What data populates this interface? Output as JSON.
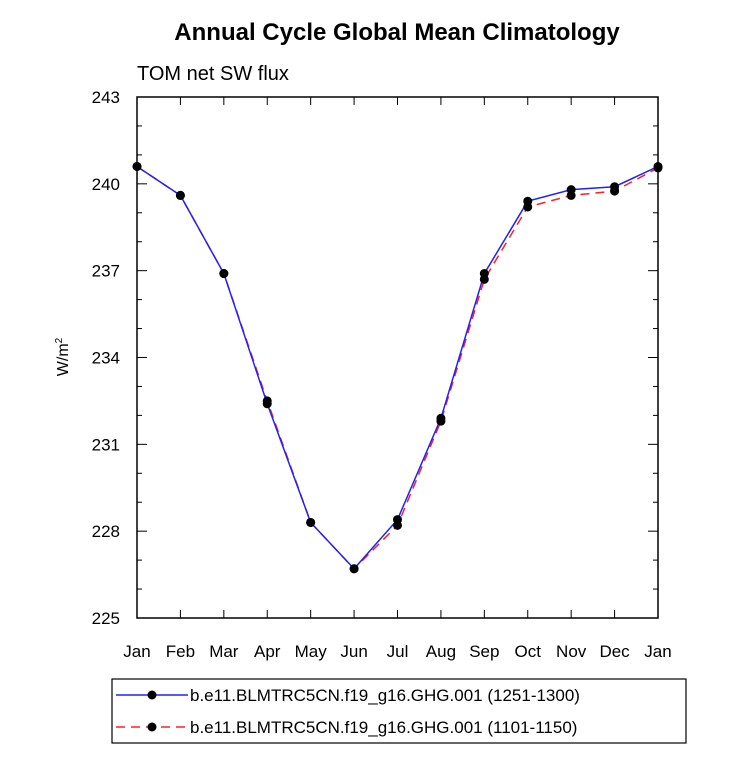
{
  "chart_data": {
    "type": "line",
    "title": "Annual Cycle Global Mean Climatology",
    "subtitle": "TOM net SW flux",
    "ylabel": "W/m",
    "ylabel_superscript": "2",
    "xlabel": "",
    "categories": [
      "Jan",
      "Feb",
      "Mar",
      "Apr",
      "May",
      "Jun",
      "Jul",
      "Aug",
      "Sep",
      "Oct",
      "Nov",
      "Dec",
      "Jan"
    ],
    "ylim": [
      225,
      243
    ],
    "yticks": [
      225,
      228,
      231,
      234,
      237,
      240,
      243
    ],
    "ytick_labels": [
      "225",
      "228",
      "231",
      "234",
      "237",
      "240",
      "243"
    ],
    "series": [
      {
        "name": "b.e11.BLMTRC5CN.f19_g16.GHG.001 (1251-1300)",
        "color": "#2020ff",
        "style": "solid",
        "values": [
          240.6,
          239.6,
          236.9,
          232.4,
          228.3,
          226.7,
          228.4,
          231.9,
          236.9,
          239.4,
          239.8,
          239.9,
          240.6
        ]
      },
      {
        "name": "b.e11.BLMTRC5CN.f19_g16.GHG.001 (1101-1150)",
        "color": "#ff2020",
        "style": "dashed",
        "values": [
          240.6,
          239.6,
          236.9,
          232.5,
          228.3,
          226.7,
          228.2,
          231.8,
          236.7,
          239.2,
          239.6,
          239.75,
          240.55
        ]
      }
    ],
    "legend": "bottom"
  }
}
